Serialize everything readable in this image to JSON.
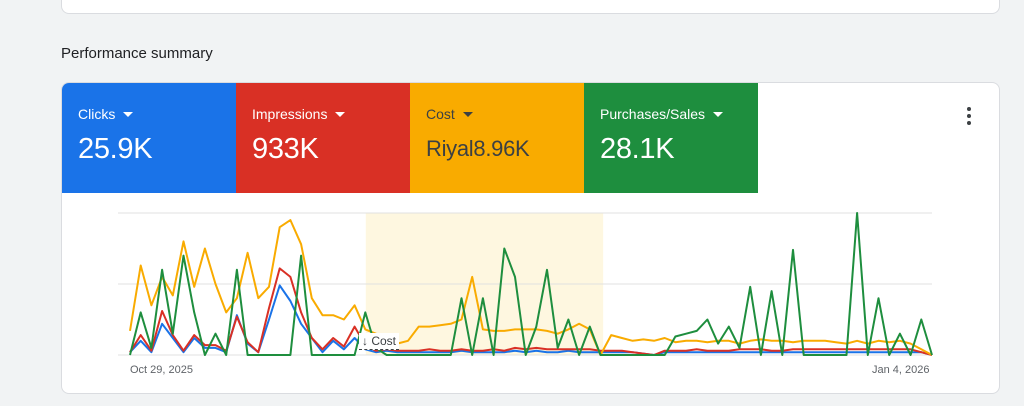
{
  "section": {
    "title": "Performance summary"
  },
  "metrics": [
    {
      "key": "clicks",
      "label": "Clicks",
      "value": "25.9K",
      "color": "#1a73e8"
    },
    {
      "key": "impressions",
      "label": "Impressions",
      "value": "933K",
      "color": "#d93025"
    },
    {
      "key": "cost",
      "label": "Cost",
      "value": "Riyal8.96K",
      "color": "#f9ab00"
    },
    {
      "key": "purchases",
      "label": "Purchases/Sales",
      "value": "28.1K",
      "color": "#1e8e3e"
    }
  ],
  "more_icon": "more-vert-icon",
  "chart_data": {
    "type": "line",
    "x_start": "Oct 29, 2025",
    "x_end": "Jan 4, 2026",
    "highlight_tag": "Cost",
    "highlight_range": [
      0.294,
      0.59
    ],
    "grid": true,
    "series": [
      {
        "name": "Clicks",
        "color": "#1a73e8",
        "values": [
          2,
          10,
          2,
          22,
          12,
          2,
          12,
          5,
          5,
          2,
          28,
          8,
          2,
          25,
          49,
          38,
          22,
          12,
          2,
          10,
          4,
          12,
          4,
          2,
          3,
          2,
          2,
          2,
          2,
          2,
          2,
          3,
          2,
          2,
          2,
          2,
          3,
          2,
          3,
          2,
          2,
          3,
          2,
          2,
          2,
          2,
          2,
          2,
          1,
          0,
          2,
          2,
          2,
          2,
          2,
          2,
          2,
          2,
          2,
          2,
          2,
          2,
          2,
          2,
          2,
          2,
          2,
          2,
          2,
          2,
          2,
          2,
          2,
          2,
          2,
          0
        ]
      },
      {
        "name": "Impressions",
        "color": "#d93025",
        "values": [
          2,
          14,
          3,
          31,
          14,
          3,
          14,
          7,
          7,
          3,
          27,
          9,
          2,
          33,
          61,
          55,
          30,
          12,
          4,
          12,
          6,
          20,
          7,
          3,
          4,
          3,
          3,
          3,
          4,
          3,
          3,
          4,
          3,
          3,
          4,
          3,
          5,
          4,
          5,
          4,
          4,
          4,
          4,
          4,
          3,
          3,
          3,
          2,
          1,
          0,
          3,
          3,
          3,
          4,
          3,
          3,
          3,
          4,
          4,
          4,
          3,
          3,
          4,
          4,
          4,
          4,
          4,
          4,
          4,
          4,
          4,
          4,
          4,
          4,
          2,
          0
        ]
      },
      {
        "name": "Cost",
        "color": "#f9ab00",
        "values": [
          17,
          63,
          35,
          55,
          42,
          80,
          48,
          75,
          50,
          30,
          40,
          72,
          40,
          48,
          90,
          95,
          78,
          40,
          28,
          28,
          25,
          35,
          18,
          15,
          12,
          8,
          10,
          20,
          20,
          21,
          22,
          25,
          55,
          18,
          17,
          17,
          18,
          18,
          18,
          17,
          15,
          18,
          22,
          18,
          0,
          14,
          12,
          10,
          11,
          10,
          12,
          9,
          10,
          10,
          9,
          10,
          10,
          8,
          10,
          11,
          10,
          10,
          9,
          10,
          10,
          10,
          9,
          8,
          10,
          8,
          10,
          9,
          10,
          8,
          4,
          0
        ]
      },
      {
        "name": "Purchases/Sales",
        "color": "#1e8e3e",
        "values": [
          0,
          30,
          5,
          60,
          15,
          70,
          30,
          0,
          15,
          0,
          60,
          0,
          0,
          0,
          0,
          0,
          70,
          0,
          0,
          0,
          0,
          0,
          30,
          5,
          0,
          0,
          0,
          0,
          0,
          0,
          0,
          40,
          0,
          40,
          0,
          75,
          55,
          0,
          20,
          60,
          5,
          25,
          0,
          20,
          0,
          0,
          0,
          0,
          0,
          0,
          0,
          13,
          15,
          17,
          25,
          8,
          20,
          5,
          48,
          0,
          45,
          0,
          74,
          0,
          0,
          0,
          0,
          0,
          100,
          0,
          40,
          0,
          15,
          0,
          25,
          0
        ]
      }
    ]
  }
}
